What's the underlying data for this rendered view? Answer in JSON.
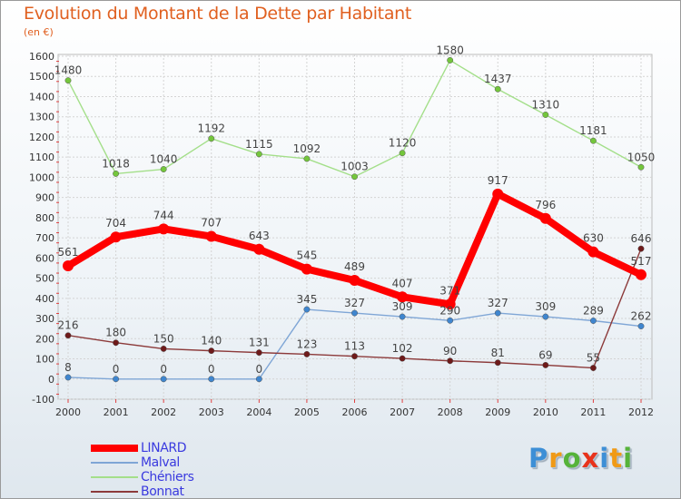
{
  "header": {
    "title": "Evolution du Montant de la Dette par Habitant",
    "subtitle": "(en €)"
  },
  "logo": {
    "text": "Proxiti",
    "letters": [
      {
        "ch": "P",
        "color": "#3d8fd6"
      },
      {
        "ch": "r",
        "color": "#f09a16"
      },
      {
        "ch": "o",
        "color": "#56b33a"
      },
      {
        "ch": "x",
        "color": "#e8331c"
      },
      {
        "ch": "i",
        "color": "#3d8fd6"
      },
      {
        "ch": "t",
        "color": "#f09a16"
      },
      {
        "ch": "i",
        "color": "#56b33a"
      }
    ]
  },
  "chart_data": {
    "type": "line",
    "title": "Evolution du Montant de la Dette par Habitant",
    "subtitle": "(en €)",
    "xlabel": "",
    "ylabel": "",
    "x": [
      "2000",
      "2001",
      "2002",
      "2003",
      "2004",
      "2005",
      "2006",
      "2007",
      "2008",
      "2009",
      "2010",
      "2011",
      "2012"
    ],
    "ylim": [
      -100,
      1600
    ],
    "yticks": [
      -100,
      0,
      100,
      200,
      300,
      400,
      500,
      600,
      700,
      800,
      900,
      1000,
      1100,
      1200,
      1300,
      1400,
      1500,
      1600
    ],
    "grid": true,
    "legend_position": "bottom-left",
    "series": [
      {
        "name": "LINARD",
        "color": "#ff0000",
        "marker": "#ff0000",
        "values": [
          561,
          704,
          744,
          707,
          643,
          545,
          489,
          407,
          371,
          917,
          796,
          630,
          517
        ]
      },
      {
        "name": "Malval",
        "color": "#7fa6d6",
        "marker": "#3f86cf",
        "values": [
          8,
          0,
          0,
          0,
          0,
          345,
          327,
          309,
          290,
          327,
          309,
          289,
          262
        ]
      },
      {
        "name": "Chéniers",
        "color": "#a4df8a",
        "marker": "#74c63c",
        "values": [
          1480,
          1018,
          1040,
          1192,
          1115,
          1092,
          1003,
          1120,
          1580,
          1437,
          1310,
          1181,
          1050
        ]
      },
      {
        "name": "Bonnat",
        "color": "#8c3a3a",
        "marker": "#6e1a1a",
        "values": [
          216,
          180,
          150,
          140,
          131,
          123,
          113,
          102,
          90,
          81,
          69,
          55,
          646
        ]
      }
    ],
    "point_labels": [
      [
        "561",
        "704",
        "744",
        "707",
        "643",
        "545",
        "489",
        "407",
        "371",
        "917",
        "796",
        "630",
        "517"
      ],
      [
        "8",
        "0",
        "0",
        "0",
        "0",
        "345",
        "327",
        "309",
        "290",
        "327",
        "309",
        "289",
        "262"
      ],
      [
        "1480",
        "1018",
        "1040",
        "1192",
        "1115",
        "1092",
        "1003",
        "1120",
        "1580",
        "1437",
        "1310",
        "1181",
        "1050"
      ],
      [
        "216",
        "180",
        "150",
        "140",
        "131",
        "123",
        "113",
        "102",
        "90",
        "81",
        "69",
        "55",
        "646"
      ]
    ]
  }
}
